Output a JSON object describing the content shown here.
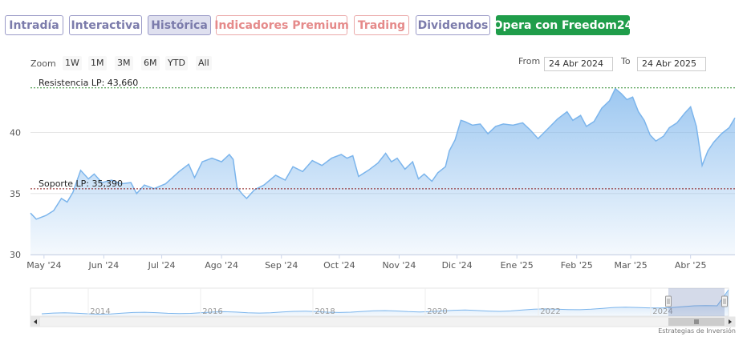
{
  "tabs": [
    {
      "label": "Intradía",
      "style": "purple"
    },
    {
      "label": "Interactiva",
      "style": "purple"
    },
    {
      "label": "Histórica",
      "style": "purple",
      "active": true
    },
    {
      "label": "Indicadores Premium",
      "style": "red"
    },
    {
      "label": "Trading",
      "style": "red"
    },
    {
      "label": "Dividendos",
      "style": "purple"
    },
    {
      "label": "Opera con Freedom24",
      "style": "green"
    }
  ],
  "zoom": {
    "label": "Zoom",
    "buttons": [
      "1W",
      "1M",
      "3M",
      "6M",
      "YTD",
      "All"
    ]
  },
  "range": {
    "from_label": "From",
    "from_value": "24 Abr 2024",
    "to_label": "To",
    "to_value": "24 Abr 2025"
  },
  "colors": {
    "line": "#7cb5ec",
    "resistance": "#2e8b2e",
    "support": "#8b1a1a",
    "green_button": "#1f9d4a"
  },
  "chart_data": {
    "type": "area",
    "ylim": [
      30,
      44.3
    ],
    "yticks": [
      "30",
      "35",
      "40"
    ],
    "xticks": [
      "May '24",
      "Jun '24",
      "Jul '24",
      "Ago '24",
      "Sep '24",
      "Oct '24",
      "Nov '24",
      "Dic '24",
      "Ene '25",
      "Feb '25",
      "Mar '25",
      "Abr '25"
    ],
    "xrange": [
      "2024-04-24",
      "2025-04-24"
    ],
    "series": [
      {
        "values": [
          [
            "2024-04-24",
            33.4
          ],
          [
            "2024-04-27",
            32.9
          ],
          [
            "2024-05-02",
            33.2
          ],
          [
            "2024-05-06",
            33.6
          ],
          [
            "2024-05-10",
            34.6
          ],
          [
            "2024-05-13",
            34.3
          ],
          [
            "2024-05-16",
            35.1
          ],
          [
            "2024-05-18",
            36.0
          ],
          [
            "2024-05-20",
            36.9
          ],
          [
            "2024-05-24",
            36.2
          ],
          [
            "2024-05-27",
            36.6
          ],
          [
            "2024-05-31",
            35.9
          ],
          [
            "2024-06-05",
            36.1
          ],
          [
            "2024-06-10",
            35.8
          ],
          [
            "2024-06-15",
            35.9
          ],
          [
            "2024-06-18",
            35.0
          ],
          [
            "2024-06-22",
            35.7
          ],
          [
            "2024-06-27",
            35.4
          ],
          [
            "2024-07-03",
            35.8
          ],
          [
            "2024-07-10",
            36.8
          ],
          [
            "2024-07-15",
            37.4
          ],
          [
            "2024-07-18",
            36.3
          ],
          [
            "2024-07-22",
            37.6
          ],
          [
            "2024-07-27",
            37.9
          ],
          [
            "2024-08-01",
            37.6
          ],
          [
            "2024-08-05",
            38.2
          ],
          [
            "2024-08-07",
            37.8
          ],
          [
            "2024-08-09",
            35.5
          ],
          [
            "2024-08-12",
            34.9
          ],
          [
            "2024-08-14",
            34.6
          ],
          [
            "2024-08-18",
            35.3
          ],
          [
            "2024-08-23",
            35.7
          ],
          [
            "2024-08-29",
            36.5
          ],
          [
            "2024-09-03",
            36.1
          ],
          [
            "2024-09-07",
            37.2
          ],
          [
            "2024-09-12",
            36.8
          ],
          [
            "2024-09-17",
            37.7
          ],
          [
            "2024-09-22",
            37.3
          ],
          [
            "2024-09-27",
            37.9
          ],
          [
            "2024-10-02",
            38.2
          ],
          [
            "2024-10-05",
            37.9
          ],
          [
            "2024-10-08",
            38.1
          ],
          [
            "2024-10-11",
            36.4
          ],
          [
            "2024-10-16",
            36.9
          ],
          [
            "2024-10-21",
            37.5
          ],
          [
            "2024-10-25",
            38.3
          ],
          [
            "2024-10-28",
            37.6
          ],
          [
            "2024-10-31",
            37.9
          ],
          [
            "2024-11-04",
            37.0
          ],
          [
            "2024-11-08",
            37.6
          ],
          [
            "2024-11-11",
            36.2
          ],
          [
            "2024-11-14",
            36.6
          ],
          [
            "2024-11-18",
            36.0
          ],
          [
            "2024-11-21",
            36.7
          ],
          [
            "2024-11-25",
            37.2
          ],
          [
            "2024-11-27",
            38.5
          ],
          [
            "2024-11-30",
            39.4
          ],
          [
            "2024-12-03",
            41.0
          ],
          [
            "2024-12-05",
            40.9
          ],
          [
            "2024-12-09",
            40.6
          ],
          [
            "2024-12-13",
            40.7
          ],
          [
            "2024-12-17",
            39.9
          ],
          [
            "2024-12-21",
            40.5
          ],
          [
            "2024-12-25",
            40.7
          ],
          [
            "2024-12-30",
            40.6
          ],
          [
            "2025-01-04",
            40.8
          ],
          [
            "2025-01-08",
            40.2
          ],
          [
            "2025-01-12",
            39.5
          ],
          [
            "2025-01-17",
            40.3
          ],
          [
            "2025-01-22",
            41.1
          ],
          [
            "2025-01-27",
            41.7
          ],
          [
            "2025-01-30",
            41.0
          ],
          [
            "2025-02-03",
            41.4
          ],
          [
            "2025-02-06",
            40.5
          ],
          [
            "2025-02-10",
            40.9
          ],
          [
            "2025-02-14",
            42.0
          ],
          [
            "2025-02-18",
            42.6
          ],
          [
            "2025-02-21",
            43.6
          ],
          [
            "2025-02-24",
            43.2
          ],
          [
            "2025-02-27",
            42.7
          ],
          [
            "2025-03-02",
            42.9
          ],
          [
            "2025-03-05",
            41.7
          ],
          [
            "2025-03-08",
            41.0
          ],
          [
            "2025-03-11",
            39.8
          ],
          [
            "2025-03-14",
            39.3
          ],
          [
            "2025-03-18",
            39.7
          ],
          [
            "2025-03-21",
            40.4
          ],
          [
            "2025-03-25",
            40.8
          ],
          [
            "2025-03-29",
            41.6
          ],
          [
            "2025-04-01",
            42.1
          ],
          [
            "2025-04-04",
            40.5
          ],
          [
            "2025-04-07",
            37.3
          ],
          [
            "2025-04-10",
            38.5
          ],
          [
            "2025-04-13",
            39.2
          ],
          [
            "2025-04-17",
            39.9
          ],
          [
            "2025-04-21",
            40.4
          ],
          [
            "2025-04-24",
            41.2
          ]
        ]
      }
    ],
    "annotations": [
      {
        "label": "Resistencia LP: 43,660",
        "value": 43.66
      },
      {
        "label": "Soporte LP: 35,390",
        "value": 35.39
      }
    ],
    "navigator": {
      "xticks": [
        "2014",
        "2016",
        "2018",
        "2020",
        "2022",
        "2024"
      ]
    }
  },
  "credit": "Estrategias de Inversión"
}
